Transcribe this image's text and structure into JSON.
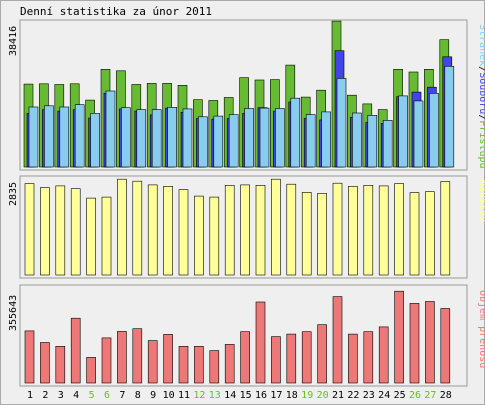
{
  "page": {
    "title": "Denní statistika za únor 2011"
  },
  "legend": {
    "top_parts": [
      "Stránek",
      "Souborů",
      "Přístupů"
    ],
    "visits": "Návštěv",
    "volume": "Objem přenosu"
  },
  "colors": {
    "hits": "#66bb33",
    "files": "#4444ee",
    "pages": "#88ccee",
    "visits": "#ffff99",
    "volume": "#ee7777",
    "weekend": "#66bb33",
    "weekday": "#000000"
  },
  "chart_data": [
    {
      "type": "bar",
      "title": "Denní statistika za únor 2011",
      "categories": [
        "1",
        "2",
        "3",
        "4",
        "5",
        "6",
        "7",
        "8",
        "9",
        "10",
        "11",
        "12",
        "13",
        "14",
        "15",
        "16",
        "17",
        "18",
        "19",
        "20",
        "21",
        "22",
        "23",
        "24",
        "25",
        "26",
        "27",
        "28"
      ],
      "weekend_days": [
        "5",
        "6",
        "12",
        "13",
        "19",
        "20",
        "26",
        "27"
      ],
      "ymax_label": "38416",
      "ylim": [
        0,
        38416
      ],
      "series": [
        {
          "name": "Přístupů",
          "values": [
            21800,
            21900,
            21700,
            21900,
            17600,
            25700,
            25300,
            21700,
            22000,
            22000,
            21500,
            17700,
            17500,
            18300,
            23500,
            22900,
            23000,
            26800,
            18400,
            20200,
            38400,
            18900,
            16600,
            15100,
            25700,
            25000,
            25700,
            33500
          ]
        },
        {
          "name": "Souborů",
          "values": [
            14100,
            15100,
            14700,
            15100,
            12900,
            19400,
            15300,
            14700,
            13700,
            15500,
            14400,
            12800,
            12600,
            12800,
            14100,
            15600,
            14700,
            17100,
            12800,
            12400,
            30600,
            13100,
            11700,
            11500,
            18500,
            19700,
            21000,
            29000
          ]
        },
        {
          "name": "Stránek",
          "values": [
            15800,
            16100,
            15800,
            16400,
            14100,
            20000,
            15600,
            15100,
            15100,
            15700,
            15300,
            13200,
            13400,
            13800,
            15400,
            15500,
            15400,
            18100,
            13800,
            14500,
            23300,
            14200,
            13600,
            12300,
            18700,
            17400,
            19400,
            26500
          ]
        }
      ]
    },
    {
      "type": "bar",
      "ymax_label": "2835",
      "ylim": [
        0,
        2835
      ],
      "series": [
        {
          "name": "Návštěv",
          "values": [
            2700,
            2580,
            2630,
            2550,
            2270,
            2300,
            2830,
            2770,
            2660,
            2620,
            2520,
            2330,
            2300,
            2650,
            2660,
            2650,
            2830,
            2680,
            2440,
            2410,
            2710,
            2620,
            2650,
            2630,
            2700,
            2430,
            2460,
            2760
          ]
        }
      ]
    },
    {
      "type": "bar",
      "ymax_label": "355643",
      "ylim": [
        0,
        355643
      ],
      "series": [
        {
          "name": "Objem přenosu",
          "values": [
            193000,
            150000,
            136000,
            240000,
            95000,
            167000,
            191000,
            201000,
            157000,
            180000,
            136000,
            136000,
            120000,
            143000,
            190000,
            300000,
            172000,
            181000,
            190000,
            216000,
            320000,
            181000,
            190000,
            208000,
            340000,
            295000,
            302000,
            276000
          ]
        }
      ]
    }
  ]
}
